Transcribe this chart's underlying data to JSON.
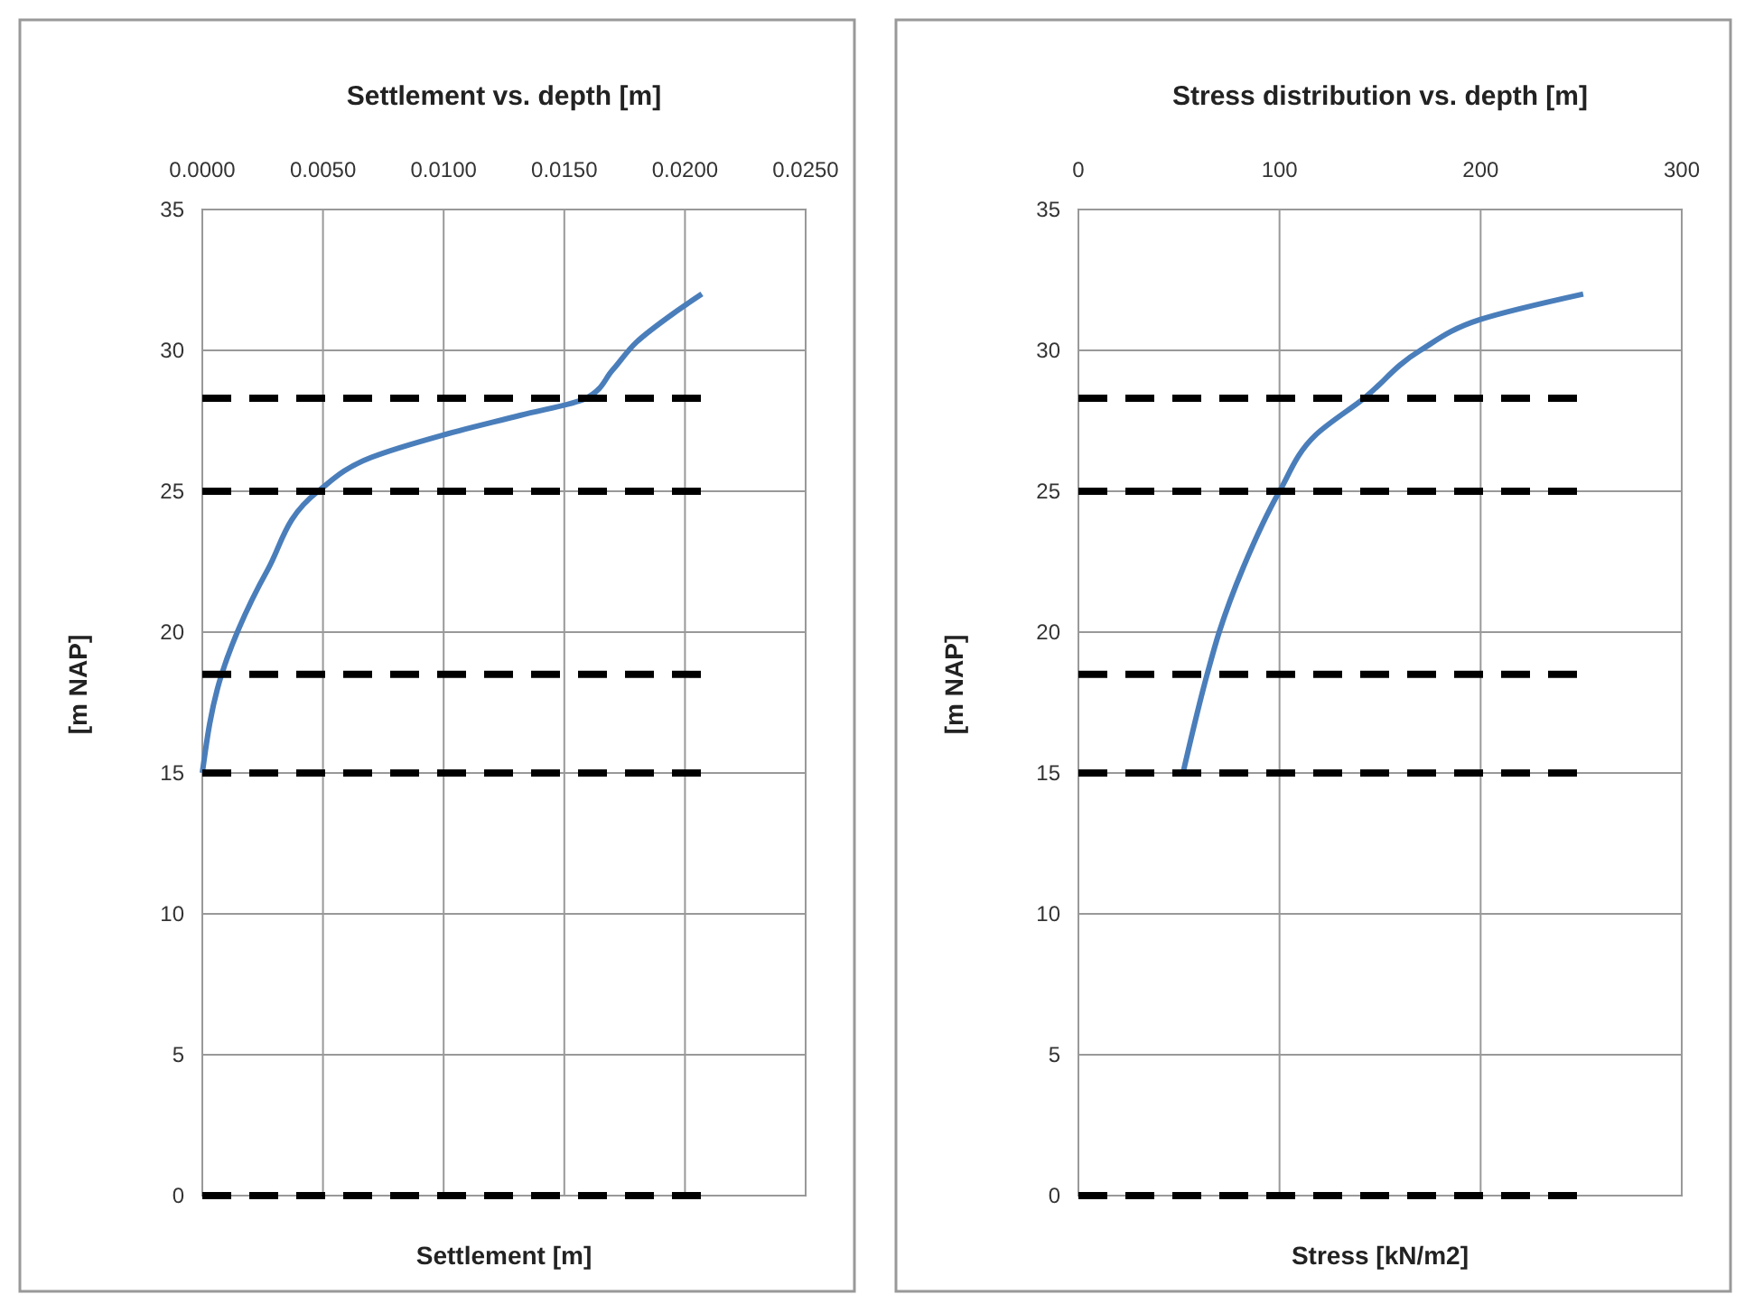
{
  "chart_data": [
    {
      "type": "line",
      "title": "Settlement vs. depth [m]",
      "xlabel": "Settlement [m]",
      "ylabel": "[m NAP]",
      "xlim": [
        0,
        0.025
      ],
      "xticks": [
        {
          "value": 0,
          "label": "0.0000"
        },
        {
          "value": 0.005,
          "label": "0.0050"
        },
        {
          "value": 0.01,
          "label": "0.0100"
        },
        {
          "value": 0.015,
          "label": "0.0150"
        },
        {
          "value": 0.02,
          "label": "0.0200"
        },
        {
          "value": 0.025,
          "label": "0.0250"
        }
      ],
      "ylim": [
        0,
        35
      ],
      "yticks": [
        0,
        5,
        10,
        15,
        20,
        25,
        30,
        35
      ],
      "grid": true,
      "series": [
        {
          "color": "#4a7ebb",
          "line_style": "solid",
          "x": [
            0,
            0.0008,
            0.0015,
            0.0027,
            0.0048,
            0.007,
            0.01,
            0.0132,
            0.0159,
            0.017,
            0.018,
            0.0195,
            0.0207
          ],
          "values": [
            15,
            18.5,
            20.1,
            22.2,
            25,
            26.2,
            27,
            27.7,
            28.3,
            29.3,
            30.3,
            31.3,
            32
          ]
        },
        {
          "color": "#000000",
          "line_style": "dashed",
          "x": [
            0,
            0.0208
          ],
          "values": [
            28.3,
            28.3
          ]
        },
        {
          "color": "#000000",
          "line_style": "dashed",
          "x": [
            0,
            0.0208
          ],
          "values": [
            25,
            25
          ]
        },
        {
          "color": "#000000",
          "line_style": "dashed",
          "x": [
            0,
            0.0208
          ],
          "values": [
            18.5,
            18.5
          ]
        },
        {
          "color": "#000000",
          "line_style": "dashed",
          "x": [
            0,
            0.0208
          ],
          "values": [
            15,
            15
          ]
        },
        {
          "color": "#000000",
          "line_style": "dashed",
          "x": [
            0,
            0.0208
          ],
          "values": [
            0,
            0
          ]
        }
      ]
    },
    {
      "type": "line",
      "title": "Stress distribution vs. depth [m]",
      "xlabel": "Stress [kN/m2]",
      "ylabel": "[m NAP]",
      "xlim": [
        0,
        300
      ],
      "xticks": [
        0,
        100,
        200,
        300
      ],
      "ylim": [
        0,
        35
      ],
      "yticks": [
        0,
        5,
        10,
        15,
        20,
        25,
        30,
        35
      ],
      "grid": true,
      "series": [
        {
          "color": "#4a7ebb",
          "line_style": "solid",
          "x": [
            52,
            64,
            70,
            82,
            100,
            118,
            142,
            170,
            200,
            251
          ],
          "values": [
            15,
            18.5,
            20,
            22.3,
            25,
            27,
            28.3,
            30,
            31.1,
            32
          ]
        },
        {
          "color": "#000000",
          "line_style": "dashed",
          "x": [
            0,
            252
          ],
          "values": [
            28.3,
            28.3
          ]
        },
        {
          "color": "#000000",
          "line_style": "dashed",
          "x": [
            0,
            252
          ],
          "values": [
            25,
            25
          ]
        },
        {
          "color": "#000000",
          "line_style": "dashed",
          "x": [
            0,
            252
          ],
          "values": [
            18.5,
            18.5
          ]
        },
        {
          "color": "#000000",
          "line_style": "dashed",
          "x": [
            0,
            252
          ],
          "values": [
            15,
            15
          ]
        },
        {
          "color": "#000000",
          "line_style": "dashed",
          "x": [
            0,
            252
          ],
          "values": [
            0,
            0
          ]
        }
      ]
    }
  ]
}
